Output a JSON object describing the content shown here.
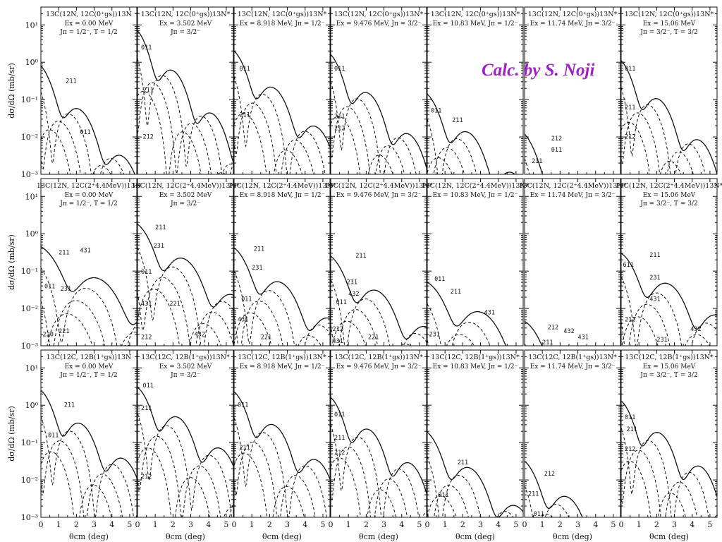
{
  "overlay_text": "Calc. by S. Noji",
  "chart_data": {
    "type": "line",
    "layout": "3 rows x 7 columns of small multiples",
    "log_scale_y": true,
    "ylim": [
      0.001,
      30
    ],
    "xlim": [
      0,
      5.4
    ],
    "x_ticks": [
      0,
      1,
      2,
      3,
      4,
      5
    ],
    "y_ticks": [
      {
        "value": 10,
        "label": "10¹"
      },
      {
        "value": 1,
        "label": "10⁰"
      },
      {
        "value": 0.1,
        "label": "10⁻¹"
      },
      {
        "value": 0.01,
        "label": "10⁻²"
      },
      {
        "value": 0.001,
        "label": "10⁻³"
      }
    ],
    "xlabel": "θcm (deg)",
    "ylabel": "dσ/dΩ (mb/sr)",
    "grid": false,
    "states": [
      {
        "e_line": "Ex = 0.00 MeV",
        "j_line": "Jπ = 1/2⁻, T = 1/2",
        "nucleus": "13N"
      },
      {
        "e_line": "Ex = 3.502 MeV",
        "j_line": "Jπ = 3/2⁻",
        "nucleus": "13N*"
      },
      {
        "e_line": "Ex = 8.918 MeV, Jπ = 1/2⁻",
        "j_line": "",
        "nucleus": "13N*"
      },
      {
        "e_line": "Ex = 9.476 MeV, Jπ = 3/2⁻",
        "j_line": "",
        "nucleus": "13N*"
      },
      {
        "e_line": "Ex = 10.83 MeV, Jπ = 1/2⁻",
        "j_line": "",
        "nucleus": "13N*"
      },
      {
        "e_line": "Ex = 11.74 MeV, Jπ = 3/2⁻",
        "j_line": "",
        "nucleus": "13N*"
      },
      {
        "e_line": "Ex = 15.06 MeV",
        "j_line": "Jπ = 3/2⁻, T = 3/2",
        "nucleus": "13N*"
      }
    ],
    "reactions": [
      {
        "title_prefix": "13C(12N, 12C(0⁺gs))"
      },
      {
        "title_prefix": "13C(12N, 12C(2⁺4.4MeV))"
      },
      {
        "title_prefix": "13C(12C, 12B(1⁺gs))"
      }
    ],
    "panels": [
      [
        {
          "peak": 0.8,
          "period": 2.4,
          "decay": 1.2,
          "labels": [
            {
              "t": "211",
              "x": 1.4,
              "y": 0.28
            },
            {
              "t": "011",
              "x": 2.2,
              "y": 0.012
            }
          ]
        },
        {
          "peak": 7.0,
          "period": 2.2,
          "decay": 1.2,
          "labels": [
            {
              "t": "011",
              "x": 0.2,
              "y": 2.2
            },
            {
              "t": "211",
              "x": 0.3,
              "y": 0.16
            },
            {
              "t": "212",
              "x": 0.3,
              "y": 0.009
            }
          ]
        },
        {
          "peak": 2.0,
          "period": 2.4,
          "decay": 1.0,
          "labels": [
            {
              "t": "011",
              "x": 0.3,
              "y": 0.6
            },
            {
              "t": "211",
              "x": 0.3,
              "y": 0.035
            }
          ]
        },
        {
          "peak": 1.6,
          "period": 2.3,
          "decay": 1.1,
          "labels": [
            {
              "t": "011",
              "x": 0.2,
              "y": 0.6
            },
            {
              "t": "211",
              "x": 0.2,
              "y": 0.032
            },
            {
              "t": "212",
              "x": 0.2,
              "y": 0.015
            }
          ]
        },
        {
          "peak": 0.14,
          "period": 2.5,
          "decay": 1.0,
          "labels": [
            {
              "t": "011",
              "x": 0.2,
              "y": 0.045
            },
            {
              "t": "211",
              "x": 1.4,
              "y": 0.025
            }
          ]
        },
        {
          "peak": 0.012,
          "period": 2.6,
          "decay": 1.2,
          "labels": [
            {
              "t": "212",
              "x": 1.5,
              "y": 0.008
            },
            {
              "t": "011",
              "x": 1.5,
              "y": 0.004
            },
            {
              "t": "211",
              "x": 0.4,
              "y": 0.002
            }
          ]
        },
        {
          "peak": 1.1,
          "period": 2.3,
          "decay": 1.1,
          "labels": [
            {
              "t": "011",
              "x": 0.2,
              "y": 0.6
            },
            {
              "t": "211",
              "x": 0.2,
              "y": 0.055
            },
            {
              "t": "212",
              "x": 0.2,
              "y": 0.009
            }
          ]
        }
      ],
      [
        {
          "peak": 0.45,
          "period": 3.4,
          "decay": 0.6,
          "labels": [
            {
              "t": "211",
              "x": 1.0,
              "y": 0.28
            },
            {
              "t": "431",
              "x": 2.2,
              "y": 0.32
            },
            {
              "t": "011",
              "x": 0.2,
              "y": 0.035
            },
            {
              "t": "231",
              "x": 1.1,
              "y": 0.03
            },
            {
              "t": "221",
              "x": 1.0,
              "y": 0.0022
            },
            {
              "t": "220",
              "x": 0.1,
              "y": 0.0018
            }
          ]
        },
        {
          "peak": 1.8,
          "period": 2.8,
          "decay": 0.8,
          "labels": [
            {
              "t": "211",
              "x": 1.0,
              "y": 1.3
            },
            {
              "t": "231",
              "x": 0.9,
              "y": 0.42
            },
            {
              "t": "011",
              "x": 0.2,
              "y": 0.085
            },
            {
              "t": "431",
              "x": 0.2,
              "y": 0.012
            },
            {
              "t": "221",
              "x": 1.8,
              "y": 0.012
            },
            {
              "t": "212",
              "x": 0.2,
              "y": 0.0015
            },
            {
              "t": "432",
              "x": 3.2,
              "y": 0.0018
            }
          ]
        },
        {
          "peak": 0.42,
          "period": 2.8,
          "decay": 0.8,
          "labels": [
            {
              "t": "211",
              "x": 1.1,
              "y": 0.35
            },
            {
              "t": "231",
              "x": 1.0,
              "y": 0.11
            },
            {
              "t": "011",
              "x": 0.4,
              "y": 0.016
            },
            {
              "t": "431",
              "x": 0.2,
              "y": 0.0045
            },
            {
              "t": "221",
              "x": 1.5,
              "y": 0.0015
            }
          ]
        },
        {
          "peak": 0.25,
          "period": 2.8,
          "decay": 0.8,
          "labels": [
            {
              "t": "211",
              "x": 1.4,
              "y": 0.23
            },
            {
              "t": "231",
              "x": 0.9,
              "y": 0.045
            },
            {
              "t": "432",
              "x": 1.0,
              "y": 0.022
            },
            {
              "t": "011",
              "x": 0.3,
              "y": 0.013
            },
            {
              "t": "212",
              "x": 0.1,
              "y": 0.0025
            },
            {
              "t": "431",
              "x": 0.1,
              "y": 0.0012
            },
            {
              "t": "221",
              "x": 2.1,
              "y": 0.0015
            }
          ]
        },
        {
          "peak": 0.05,
          "period": 3.2,
          "decay": 0.6,
          "labels": [
            {
              "t": "011",
              "x": 0.4,
              "y": 0.055
            },
            {
              "t": "211",
              "x": 1.3,
              "y": 0.025
            },
            {
              "t": "431",
              "x": 3.2,
              "y": 0.007
            },
            {
              "t": "231",
              "x": 0.1,
              "y": 0.0018
            }
          ]
        },
        {
          "peak": 0.0045,
          "period": 3.0,
          "decay": 0.6,
          "labels": [
            {
              "t": "212",
              "x": 1.3,
              "y": 0.0028
            },
            {
              "t": "432",
              "x": 2.2,
              "y": 0.0022
            },
            {
              "t": "431",
              "x": 3.0,
              "y": 0.0015
            },
            {
              "t": "211",
              "x": 1.0,
              "y": 0.0011
            }
          ]
        },
        {
          "peak": 0.3,
          "period": 2.8,
          "decay": 0.7,
          "labels": [
            {
              "t": "611",
              "x": 0.1,
              "y": 0.13
            },
            {
              "t": "211",
              "x": 1.6,
              "y": 0.24
            },
            {
              "t": "231",
              "x": 1.6,
              "y": 0.06
            },
            {
              "t": "431",
              "x": 1.6,
              "y": 0.016
            },
            {
              "t": "212",
              "x": 0.2,
              "y": 0.0045
            },
            {
              "t": "432",
              "x": 3.9,
              "y": 0.0025
            },
            {
              "t": "231",
              "x": 2.0,
              "y": 0.0013
            }
          ]
        }
      ],
      [
        {
          "peak": 2.5,
          "period": 2.4,
          "decay": 0.9,
          "labels": [
            {
              "t": "211",
              "x": 1.3,
              "y": 0.9
            },
            {
              "t": "011",
              "x": 0.4,
              "y": 0.14
            }
          ]
        },
        {
          "peak": 3.0,
          "period": 2.4,
          "decay": 0.8,
          "labels": [
            {
              "t": "011",
              "x": 0.3,
              "y": 3.0
            },
            {
              "t": "211",
              "x": 0.2,
              "y": 0.75
            },
            {
              "t": "212",
              "x": 0.2,
              "y": 0.011
            }
          ]
        },
        {
          "peak": 2.3,
          "period": 2.4,
          "decay": 0.9,
          "labels": [
            {
              "t": "011",
              "x": 0.2,
              "y": 0.9
            },
            {
              "t": "211",
              "x": 0.3,
              "y": 0.065
            }
          ]
        },
        {
          "peak": 1.6,
          "period": 2.3,
          "decay": 0.9,
          "labels": [
            {
              "t": "011",
              "x": 0.2,
              "y": 0.5
            },
            {
              "t": "211",
              "x": 0.2,
              "y": 0.12
            },
            {
              "t": "212",
              "x": 0.2,
              "y": 0.048
            }
          ]
        },
        {
          "peak": 0.19,
          "period": 2.6,
          "decay": 0.9,
          "labels": [
            {
              "t": "211",
              "x": 1.7,
              "y": 0.026
            },
            {
              "t": "011",
              "x": 0.6,
              "y": 0.0035
            }
          ]
        },
        {
          "peak": 0.032,
          "period": 2.6,
          "decay": 0.9,
          "labels": [
            {
              "t": "212",
              "x": 1.1,
              "y": 0.013
            },
            {
              "t": "211",
              "x": 0.2,
              "y": 0.0038
            },
            {
              "t": "011",
              "x": 0.5,
              "y": 0.0011
            }
          ]
        },
        {
          "peak": 1.3,
          "period": 2.3,
          "decay": 0.9,
          "labels": [
            {
              "t": "011",
              "x": 0.2,
              "y": 0.42
            },
            {
              "t": "211",
              "x": 0.3,
              "y": 0.2
            },
            {
              "t": "212",
              "x": 0.2,
              "y": 0.06
            }
          ]
        }
      ]
    ]
  }
}
